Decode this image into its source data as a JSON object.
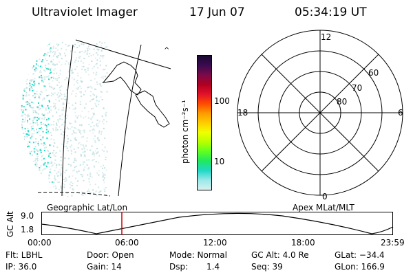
{
  "header": {
    "title": "Ultraviolet Imager",
    "date": "17 Jun 07",
    "time": "05:34:19 UT"
  },
  "colorbar": {
    "label": "photon cm⁻²s⁻¹",
    "ticks": [
      "100",
      "10"
    ],
    "colors": [
      "#1a0a30",
      "#3a0a50",
      "#7a0a4a",
      "#b00020",
      "#e0102a",
      "#ff4a00",
      "#ff9a00",
      "#ffcc00",
      "#f0ff00",
      "#b8ff00",
      "#60ff20",
      "#20e860",
      "#20d8c8",
      "#9be8e8",
      "#d8f0f0"
    ]
  },
  "left_panel": {
    "caption": "Geographic Lat/Lon",
    "aurora_color": "#20d8c8"
  },
  "polar_plot": {
    "caption": "Apex MLat/MLT",
    "mlt_labels": {
      "top": "12",
      "left": "18",
      "right": "6",
      "bottom": "0"
    },
    "lat_labels": [
      "60",
      "70",
      "80"
    ]
  },
  "timeline": {
    "ylabel": "GC Alt",
    "ymax": "9.0",
    "ymin": "1.8",
    "time_ticks": [
      "00:00",
      "06:00",
      "12:00",
      "18:00",
      "23:59"
    ],
    "marker_color": "#cc0000"
  },
  "info": {
    "filter": "Flt: LBHL",
    "ip": "IP: 36.0",
    "door": "Door: Open",
    "gain": "Gain: 14",
    "mode": "Mode: Normal",
    "dsp_label": "Dsp:",
    "dsp_value": "1.4",
    "gc_alt": "GC Alt: 4.0 Re",
    "seq": "Seq: 39",
    "glat": "GLat: −34.4",
    "glon": "GLon: 166.9"
  }
}
